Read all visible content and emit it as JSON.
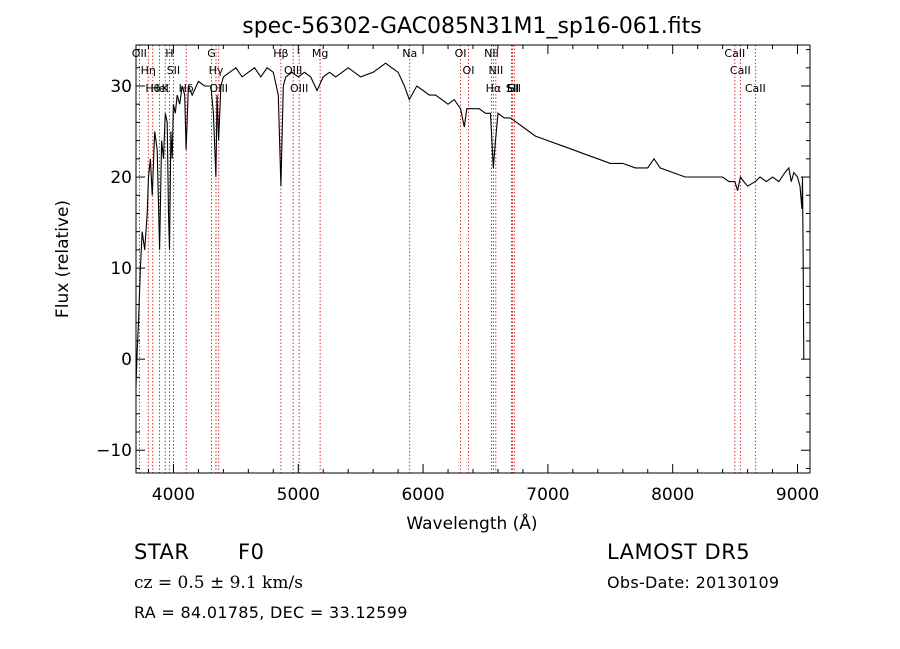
{
  "chart_data": {
    "type": "line",
    "title": "spec-56302-GAC085N31M1_sp16-061.fits",
    "xlabel": "Wavelength (Å)",
    "ylabel": "Flux (relative)",
    "xlim": [
      3700,
      9100
    ],
    "ylim": [
      -12.5,
      34.5
    ],
    "xticks": [
      4000,
      5000,
      6000,
      7000,
      8000,
      9000
    ],
    "yticks": [
      -10,
      0,
      10,
      20,
      30
    ],
    "grid": false,
    "series": [
      {
        "color": "#000000",
        "x": [
          3700,
          3710,
          3720,
          3735,
          3750,
          3770,
          3790,
          3800,
          3815,
          3830,
          3850,
          3870,
          3889,
          3905,
          3920,
          3935,
          3950,
          3960,
          3968,
          3980,
          3990,
          4000,
          4015,
          4030,
          4050,
          4070,
          4090,
          4101,
          4120,
          4150,
          4200,
          4250,
          4300,
          4320,
          4340,
          4350,
          4362,
          4380,
          4400,
          4450,
          4500,
          4550,
          4600,
          4650,
          4700,
          4750,
          4800,
          4840,
          4861,
          4880,
          4900,
          4950,
          5000,
          5050,
          5100,
          5150,
          5200,
          5250,
          5300,
          5400,
          5500,
          5600,
          5700,
          5750,
          5800,
          5850,
          5890,
          5950,
          6000,
          6050,
          6100,
          6150,
          6200,
          6250,
          6300,
          6330,
          6350,
          6400,
          6450,
          6500,
          6540,
          6563,
          6580,
          6600,
          6650,
          6700,
          6750,
          6800,
          6900,
          7000,
          7100,
          7200,
          7300,
          7400,
          7500,
          7600,
          7700,
          7800,
          7850,
          7900,
          8000,
          8100,
          8200,
          8300,
          8400,
          8450,
          8498,
          8520,
          8542,
          8570,
          8600,
          8662,
          8700,
          8750,
          8800,
          8850,
          8900,
          8930,
          8950,
          8970,
          9000,
          9020,
          9035,
          9040,
          9045,
          9050
        ],
        "y": [
          -3,
          1,
          4,
          10,
          14,
          12,
          16,
          20,
          22,
          18,
          25,
          23,
          12,
          24,
          22,
          27,
          26,
          16,
          12,
          25,
          22,
          28,
          27,
          29,
          28,
          30,
          29,
          23,
          30,
          29,
          30.5,
          30,
          30,
          27,
          20,
          29,
          24,
          30,
          31,
          31.5,
          32,
          31,
          31.5,
          32,
          31,
          32,
          31.5,
          29,
          19,
          30,
          31,
          31.5,
          31,
          31.5,
          31,
          29.5,
          31,
          31.5,
          31,
          32,
          31,
          31.5,
          32.5,
          32,
          31.5,
          30,
          28.5,
          30,
          29.5,
          29,
          29,
          28.5,
          28,
          28.5,
          27.5,
          25.5,
          27.5,
          27.5,
          27.5,
          27,
          27,
          21,
          24,
          27,
          26.5,
          26.5,
          26,
          25.5,
          24.5,
          24,
          23.5,
          23,
          22.5,
          22,
          21.5,
          21.5,
          21,
          21,
          22,
          21,
          20.5,
          20,
          20,
          20,
          20,
          19.5,
          19.5,
          18.5,
          20,
          19.5,
          19,
          19.5,
          20,
          19.5,
          20,
          19.5,
          20.5,
          21,
          19.5,
          20.5,
          20,
          19,
          16.5,
          20,
          12,
          0
        ]
      }
    ],
    "lines": [
      {
        "x": 3727,
        "label": "OII"
      },
      {
        "x": 3798,
        "label": "Hη"
      },
      {
        "x": 3835,
        "label": "Hθ"
      },
      {
        "x": 3889,
        "label": "HeI"
      },
      {
        "x": 3934,
        "label": "K"
      },
      {
        "x": 3968,
        "label": "H"
      },
      {
        "x": 4000,
        "label": "SII"
      },
      {
        "x": 4102,
        "label": "Hδ"
      },
      {
        "x": 4305,
        "label": "G"
      },
      {
        "x": 4341,
        "label": "Hγ"
      },
      {
        "x": 4363,
        "label": "OIII"
      },
      {
        "x": 4861,
        "label": "Hβ"
      },
      {
        "x": 4959,
        "label": "OIII"
      },
      {
        "x": 5007,
        "label": "OIII"
      },
      {
        "x": 5175,
        "label": "Mg"
      },
      {
        "x": 5893,
        "label": "Na"
      },
      {
        "x": 6300,
        "label": "OI"
      },
      {
        "x": 6364,
        "label": "OI"
      },
      {
        "x": 6548,
        "label": "NII"
      },
      {
        "x": 6563,
        "label": "Hα"
      },
      {
        "x": 6583,
        "label": "NII"
      },
      {
        "x": 6708,
        "label": "Li"
      },
      {
        "x": 6716,
        "label": "SII"
      },
      {
        "x": 6731,
        "label": "SII"
      },
      {
        "x": 8498,
        "label": "CaII"
      },
      {
        "x": 8542,
        "label": "CaII"
      },
      {
        "x": 8662,
        "label": "CaII"
      }
    ]
  },
  "info": {
    "object_class": "STAR",
    "subclass": "F0",
    "survey": "LAMOST DR5",
    "cz": "cz = 0.5 ± 9.1 km/s",
    "obs_date": "Obs-Date: 20130109",
    "coords": "RA =  84.01785, DEC =  33.12599"
  },
  "colors": {
    "spectrum": "#000000",
    "line_markers": "#cc0000",
    "axes": "#000000",
    "background": "#ffffff"
  }
}
